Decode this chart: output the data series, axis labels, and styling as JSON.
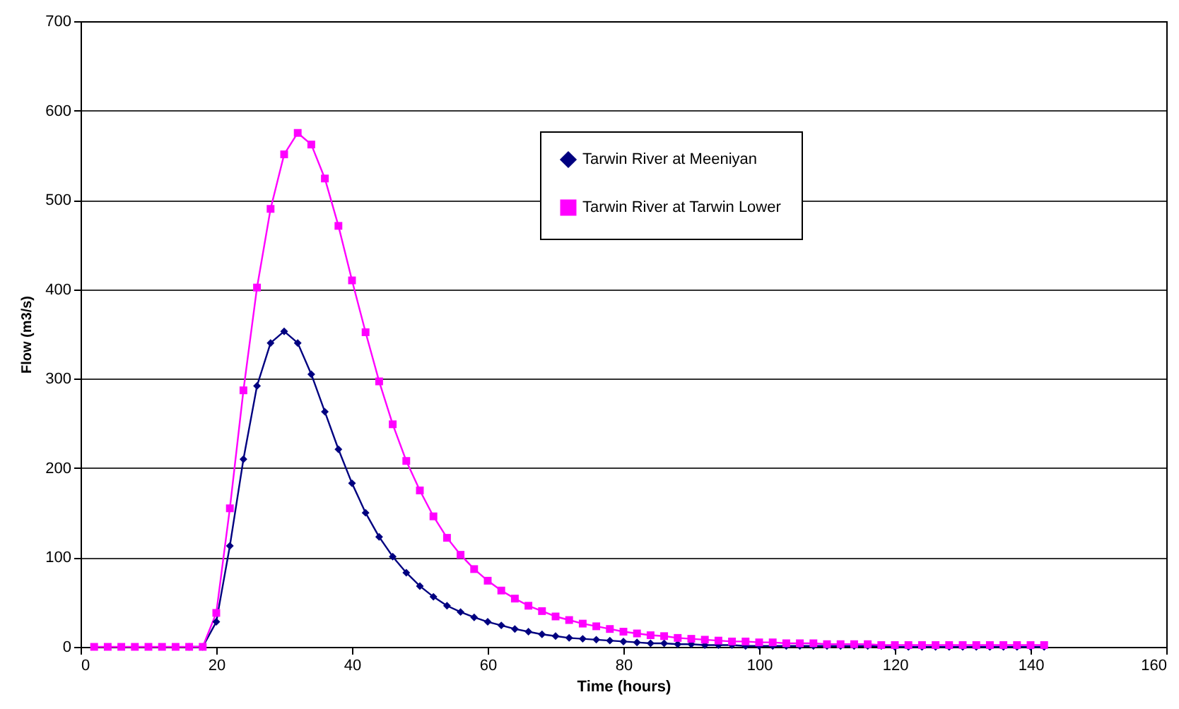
{
  "chart_data": {
    "type": "line",
    "xlabel": "Time (hours)",
    "ylabel": "Flow (m3/s)",
    "x": [
      2,
      4,
      6,
      8,
      10,
      12,
      14,
      16,
      18,
      20,
      22,
      24,
      26,
      28,
      30,
      32,
      34,
      36,
      38,
      40,
      42,
      44,
      46,
      48,
      50,
      52,
      54,
      56,
      58,
      60,
      62,
      64,
      66,
      68,
      70,
      72,
      74,
      76,
      78,
      80,
      82,
      84,
      86,
      88,
      90,
      92,
      94,
      96,
      98,
      100,
      102,
      104,
      106,
      108,
      110,
      112,
      114,
      116,
      118,
      120,
      122,
      124,
      126,
      128,
      130,
      132,
      134,
      136,
      138,
      140,
      142
    ],
    "series": [
      {
        "name": "Tarwin River at Meeniyan",
        "color": "#000080",
        "marker": "diamond",
        "values": [
          null,
          null,
          null,
          null,
          null,
          null,
          null,
          0,
          0,
          28,
          113,
          210,
          292,
          340,
          353,
          340,
          305,
          263,
          221,
          183,
          150,
          123,
          101,
          83,
          68,
          56,
          46,
          39,
          33,
          28,
          24,
          20,
          17,
          14,
          12,
          10,
          9,
          8,
          7,
          6,
          5,
          4,
          4,
          3,
          3,
          2,
          2,
          2,
          1,
          1,
          1,
          1,
          1,
          1,
          1,
          1,
          1,
          1,
          1,
          0,
          0,
          0,
          0,
          0,
          0,
          0,
          0,
          0,
          0,
          0,
          0
        ]
      },
      {
        "name": "Tarwin River at Tarwin Lower",
        "color": "#ff00ff",
        "marker": "square",
        "values": [
          0,
          0,
          0,
          0,
          0,
          0,
          0,
          0,
          0,
          38,
          155,
          287,
          402,
          490,
          551,
          575,
          562,
          524,
          471,
          410,
          352,
          297,
          249,
          208,
          175,
          146,
          122,
          103,
          87,
          74,
          63,
          54,
          46,
          40,
          34,
          30,
          26,
          23,
          20,
          17,
          15,
          13,
          12,
          10,
          9,
          8,
          7,
          6,
          6,
          5,
          5,
          4,
          4,
          4,
          3,
          3,
          3,
          3,
          2,
          2,
          2,
          2,
          2,
          2,
          2,
          2,
          2,
          2,
          2,
          2,
          2
        ]
      }
    ],
    "xlim": [
      0,
      160
    ],
    "xticks": [
      0,
      20,
      40,
      60,
      80,
      100,
      120,
      140,
      160
    ],
    "ylim": [
      0,
      700
    ],
    "yticks": [
      0,
      100,
      200,
      300,
      400,
      500,
      600,
      700
    ],
    "grid": "y",
    "legend": "top right"
  }
}
